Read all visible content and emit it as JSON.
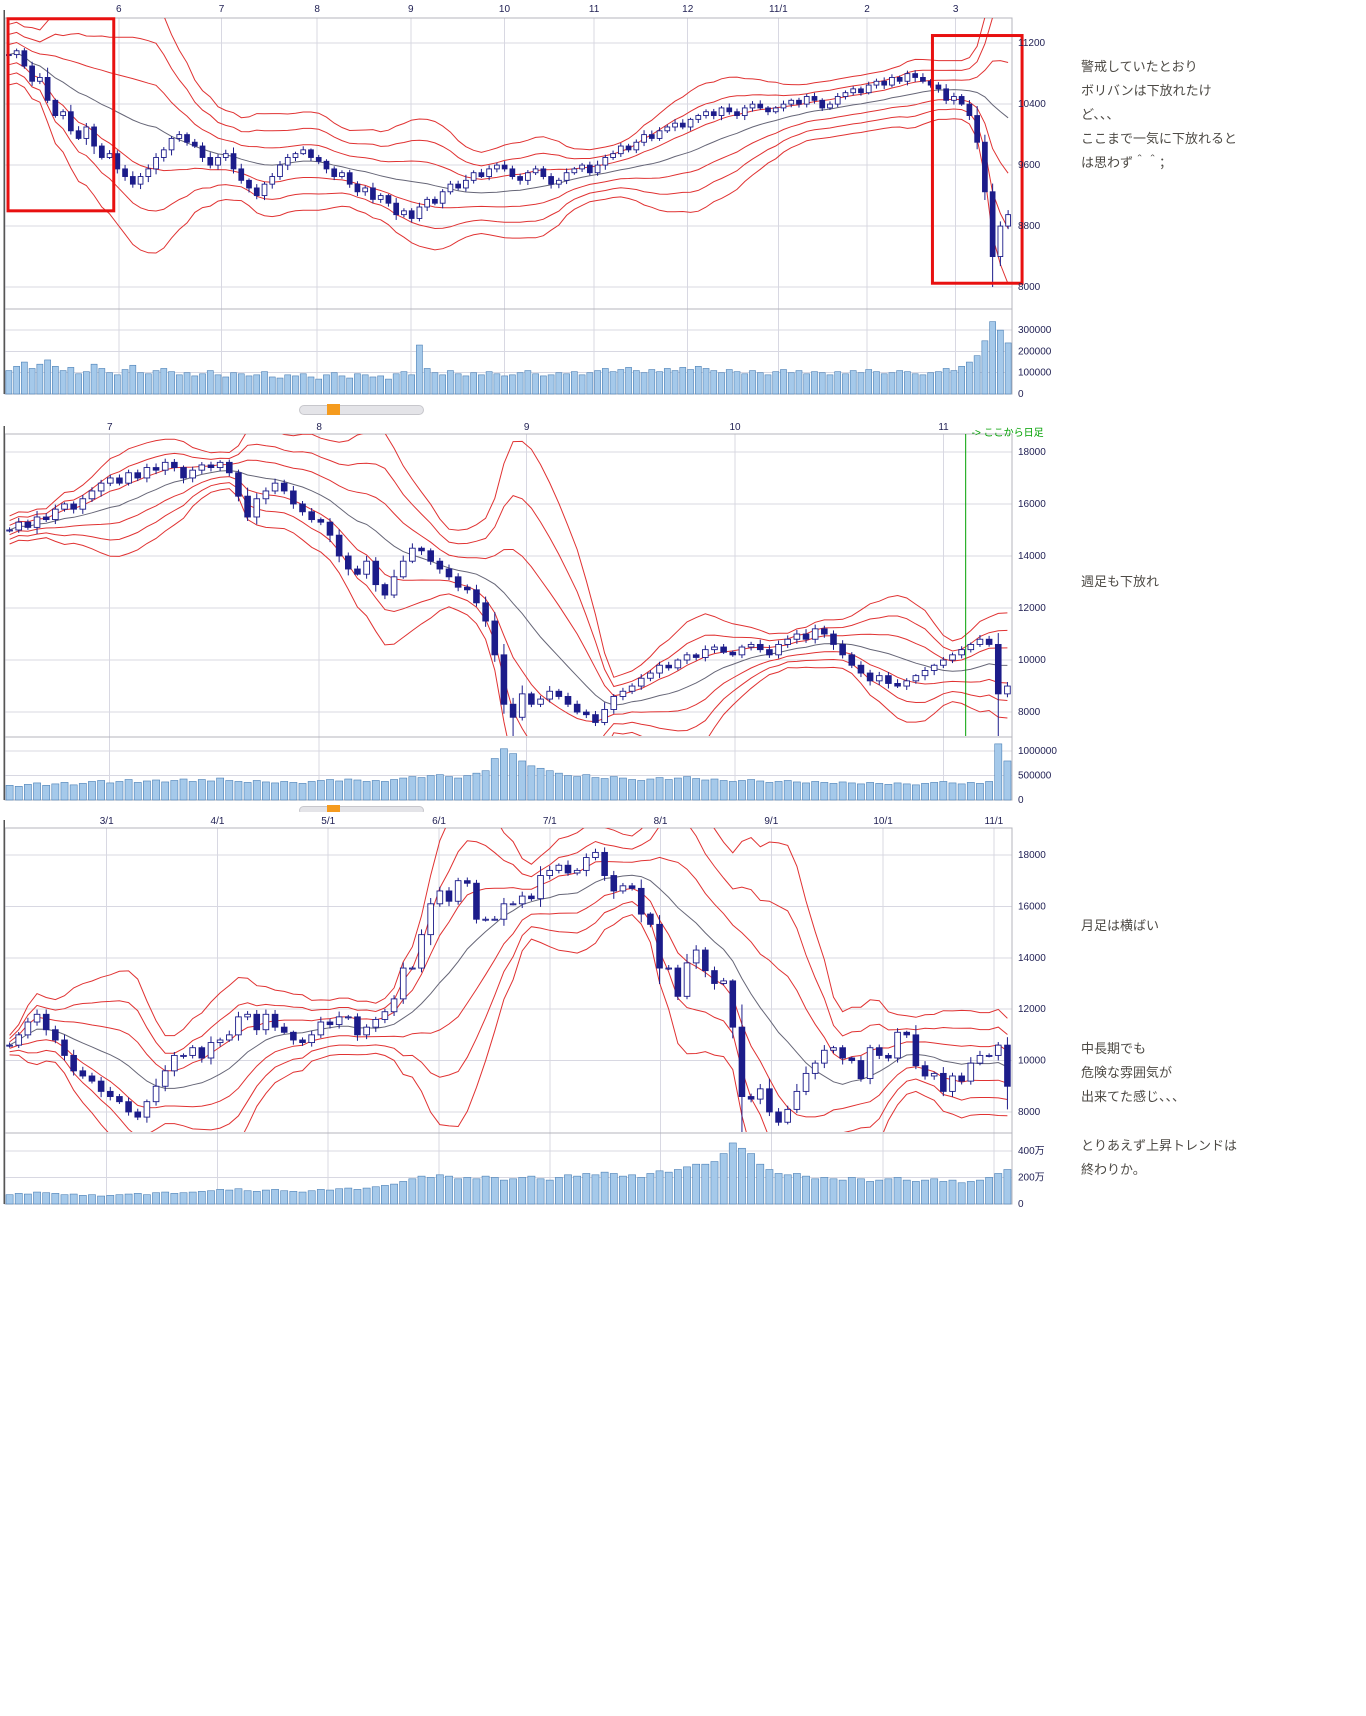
{
  "colors": {
    "band": "#e03232",
    "center_line": "#666677",
    "candle": "#1c1c8a",
    "candle_up_fill": "#ffffff",
    "volume_fill": "#a5c9ea",
    "volume_stroke": "#4a7fb5",
    "grid": "#d8d8e2",
    "axis_text": "#222255",
    "highlight_box": "#e81010",
    "annotation_text": "#4d4a45",
    "green": "#00a000",
    "artifact_orange": "#f59b1e"
  },
  "annotations": {
    "warning": {
      "lines": [
        "警戒していたとおり",
        "ボリバンは下放れたけ",
        "ど、、、",
        "ここまで一気に下放れると",
        "は思わず＾＾；"
      ]
    },
    "weekly": {
      "lines": [
        "週足も下放れ"
      ]
    },
    "monthly_flat": {
      "lines": [
        "月足は横ばい"
      ]
    },
    "midterm": {
      "lines": [
        "中長期でも",
        "危険な雰囲気が",
        "出来てた感じ、、、"
      ]
    },
    "trend_end": {
      "lines": [
        "とりあえず上昇トレンドは",
        "終わりか。"
      ]
    }
  },
  "chart_data": [
    {
      "name": "daily-chart",
      "type": "candlestick",
      "x_ticks": [
        {
          "f": 0.113,
          "label": "6"
        },
        {
          "f": 0.215,
          "label": "7"
        },
        {
          "f": 0.31,
          "label": "8"
        },
        {
          "f": 0.403,
          "label": "9"
        },
        {
          "f": 0.496,
          "label": "10"
        },
        {
          "f": 0.585,
          "label": "11"
        },
        {
          "f": 0.678,
          "label": "12"
        },
        {
          "f": 0.768,
          "label": "11/1"
        },
        {
          "f": 0.856,
          "label": "2"
        },
        {
          "f": 0.944,
          "label": "3"
        }
      ],
      "y_ticks": [
        {
          "v": 11200,
          "label": "11200"
        },
        {
          "v": 10400,
          "label": "10400"
        },
        {
          "v": 9600,
          "label": "9600"
        },
        {
          "v": 8800,
          "label": "8800"
        },
        {
          "v": 8000,
          "label": "8000"
        }
      ],
      "ylim": [
        7725,
        11530
      ],
      "vol_ticks": [
        {
          "v": 300000,
          "label": "300000"
        },
        {
          "v": 200000,
          "label": "200000"
        },
        {
          "v": 100000,
          "label": "100000"
        },
        {
          "v": 0,
          "label": "0"
        }
      ],
      "vlim": [
        0,
        390000
      ],
      "band_window": 20,
      "band_multipliers": [
        1,
        2,
        3
      ],
      "closes": [
        11050,
        11100,
        10900,
        10700,
        10750,
        10450,
        10250,
        10300,
        10050,
        9950,
        10100,
        9850,
        9700,
        9750,
        9550,
        9450,
        9350,
        9450,
        9550,
        9700,
        9800,
        9950,
        10000,
        9900,
        9850,
        9700,
        9600,
        9700,
        9750,
        9550,
        9400,
        9300,
        9200,
        9350,
        9450,
        9600,
        9700,
        9750,
        9800,
        9700,
        9650,
        9550,
        9450,
        9500,
        9350,
        9250,
        9300,
        9150,
        9200,
        9100,
        8950,
        9000,
        8900,
        9050,
        9150,
        9100,
        9250,
        9350,
        9300,
        9400,
        9500,
        9450,
        9550,
        9600,
        9550,
        9450,
        9400,
        9500,
        9550,
        9450,
        9350,
        9400,
        9500,
        9550,
        9600,
        9500,
        9600,
        9700,
        9750,
        9850,
        9800,
        9900,
        10000,
        9950,
        10050,
        10100,
        10150,
        10100,
        10200,
        10250,
        10300,
        10250,
        10350,
        10300,
        10250,
        10350,
        10400,
        10350,
        10300,
        10350,
        10400,
        10450,
        10400,
        10500,
        10450,
        10350,
        10400,
        10500,
        10550,
        10600,
        10550,
        10650,
        10700,
        10650,
        10750,
        10700,
        10800,
        10750,
        10700,
        10650,
        10600,
        10450,
        10500,
        10400,
        10250,
        9900,
        9250,
        8400,
        8800,
        8950
      ],
      "volumes": [
        110000,
        130000,
        150000,
        120000,
        140000,
        160000,
        130000,
        110000,
        125000,
        95000,
        105000,
        140000,
        120000,
        100000,
        90000,
        115000,
        135000,
        100000,
        95000,
        110000,
        120000,
        105000,
        90000,
        100000,
        85000,
        95000,
        110000,
        90000,
        80000,
        100000,
        95000,
        85000,
        90000,
        105000,
        80000,
        75000,
        90000,
        85000,
        95000,
        80000,
        70000,
        90000,
        100000,
        85000,
        75000,
        95000,
        90000,
        80000,
        85000,
        70000,
        95000,
        105000,
        90000,
        230000,
        120000,
        100000,
        90000,
        110000,
        95000,
        85000,
        100000,
        90000,
        105000,
        95000,
        85000,
        90000,
        100000,
        110000,
        95000,
        85000,
        90000,
        100000,
        95000,
        105000,
        90000,
        100000,
        110000,
        120000,
        105000,
        115000,
        125000,
        110000,
        100000,
        115000,
        105000,
        120000,
        110000,
        125000,
        115000,
        130000,
        120000,
        110000,
        100000,
        115000,
        105000,
        95000,
        110000,
        100000,
        90000,
        105000,
        115000,
        100000,
        110000,
        95000,
        105000,
        100000,
        90000,
        105000,
        95000,
        110000,
        100000,
        115000,
        105000,
        95000,
        100000,
        110000,
        105000,
        95000,
        90000,
        100000,
        105000,
        120000,
        110000,
        130000,
        150000,
        180000,
        250000,
        340000,
        300000,
        240000
      ],
      "low_overrides": {
        "127": 8000
      },
      "boxes": [
        {
          "f0": 0.003,
          "f1": 0.108,
          "v0": 11520,
          "v1": 9000
        },
        {
          "f0": 0.921,
          "f1": 1.01,
          "v0": 11300,
          "v1": 8050
        }
      ],
      "vline": null
    },
    {
      "name": "weekly-chart",
      "type": "candlestick",
      "x_ticks": [
        {
          "f": 0.104,
          "label": "7"
        },
        {
          "f": 0.312,
          "label": "8"
        },
        {
          "f": 0.518,
          "label": "9"
        },
        {
          "f": 0.725,
          "label": "10"
        },
        {
          "f": 0.932,
          "label": "11"
        }
      ],
      "y_ticks": [
        {
          "v": 18000,
          "label": "18000"
        },
        {
          "v": 16000,
          "label": "16000"
        },
        {
          "v": 14000,
          "label": "14000"
        },
        {
          "v": 12000,
          "label": "12000"
        },
        {
          "v": 10000,
          "label": "10000"
        },
        {
          "v": 8000,
          "label": "8000"
        }
      ],
      "ylim": [
        7080,
        18690
      ],
      "vol_ticks": [
        {
          "v": 1000000,
          "label": "1000000"
        },
        {
          "v": 500000,
          "label": "500000"
        },
        {
          "v": 0,
          "label": "0"
        }
      ],
      "vlim": [
        0,
        1250000
      ],
      "band_window": 13,
      "band_multipliers": [
        1,
        2,
        3
      ],
      "closes": [
        15000,
        15300,
        15100,
        15500,
        15400,
        15800,
        16000,
        15800,
        16200,
        16500,
        16800,
        17000,
        16800,
        17200,
        17000,
        17400,
        17300,
        17600,
        17400,
        17000,
        17300,
        17500,
        17400,
        17600,
        17200,
        16300,
        15500,
        16200,
        16500,
        16800,
        16500,
        16000,
        15700,
        15400,
        15300,
        14800,
        14000,
        13500,
        13300,
        13800,
        12900,
        12500,
        13200,
        13800,
        14300,
        14200,
        13800,
        13500,
        13200,
        12800,
        12700,
        12200,
        11500,
        10200,
        8300,
        7800,
        8700,
        8300,
        8500,
        8800,
        8600,
        8300,
        8000,
        7900,
        7600,
        8100,
        8600,
        8800,
        9000,
        9300,
        9500,
        9800,
        9700,
        10000,
        10200,
        10100,
        10400,
        10500,
        10300,
        10200,
        10500,
        10600,
        10400,
        10200,
        10600,
        10800,
        11000,
        10800,
        11200,
        11000,
        10600,
        10200,
        9800,
        9500,
        9200,
        9400,
        9100,
        9000,
        9200,
        9400,
        9600,
        9800,
        10000,
        10200,
        10400,
        10600,
        10800,
        10600,
        8700,
        9000
      ],
      "volumes": [
        300000,
        280000,
        320000,
        350000,
        300000,
        330000,
        360000,
        310000,
        340000,
        380000,
        400000,
        350000,
        380000,
        420000,
        360000,
        390000,
        410000,
        370000,
        400000,
        430000,
        380000,
        420000,
        390000,
        450000,
        400000,
        380000,
        360000,
        400000,
        370000,
        350000,
        380000,
        360000,
        340000,
        380000,
        400000,
        420000,
        390000,
        430000,
        410000,
        380000,
        400000,
        380000,
        420000,
        450000,
        480000,
        460000,
        500000,
        520000,
        480000,
        450000,
        500000,
        550000,
        600000,
        850000,
        1050000,
        950000,
        800000,
        700000,
        650000,
        600000,
        550000,
        500000,
        480000,
        520000,
        460000,
        440000,
        480000,
        450000,
        420000,
        400000,
        430000,
        460000,
        420000,
        450000,
        480000,
        440000,
        410000,
        430000,
        400000,
        380000,
        400000,
        420000,
        390000,
        360000,
        380000,
        400000,
        370000,
        350000,
        380000,
        360000,
        340000,
        370000,
        350000,
        330000,
        360000,
        340000,
        320000,
        350000,
        330000,
        310000,
        340000,
        360000,
        380000,
        350000,
        330000,
        360000,
        340000,
        380000,
        1150000,
        800000
      ],
      "low_overrides": {
        "55": 6900,
        "108": 6950
      },
      "boxes": [],
      "vline": {
        "f": 0.954,
        "label": "-> ここから日足"
      }
    },
    {
      "name": "monthly-chart",
      "type": "candlestick",
      "x_ticks": [
        {
          "f": 0.101,
          "label": "3/1"
        },
        {
          "f": 0.211,
          "label": "4/1"
        },
        {
          "f": 0.321,
          "label": "5/1"
        },
        {
          "f": 0.431,
          "label": "6/1"
        },
        {
          "f": 0.541,
          "label": "7/1"
        },
        {
          "f": 0.651,
          "label": "8/1"
        },
        {
          "f": 0.761,
          "label": "9/1"
        },
        {
          "f": 0.872,
          "label": "10/1"
        },
        {
          "f": 0.982,
          "label": "11/1"
        }
      ],
      "y_ticks": [
        {
          "v": 18000,
          "label": "18000"
        },
        {
          "v": 16000,
          "label": "16000"
        },
        {
          "v": 14000,
          "label": "14000"
        },
        {
          "v": 12000,
          "label": "12000"
        },
        {
          "v": 10000,
          "label": "10000"
        },
        {
          "v": 8000,
          "label": "8000"
        }
      ],
      "ylim": [
        7220,
        19050
      ],
      "vol_ticks": [
        {
          "v": 400,
          "label": "400万"
        },
        {
          "v": 200,
          "label": "200万"
        },
        {
          "v": 0,
          "label": "0"
        }
      ],
      "vlim": [
        0,
        520
      ],
      "volume_unit": "万",
      "band_window": 12,
      "band_multipliers": [
        1,
        2,
        3
      ],
      "closes": [
        10600,
        11000,
        11500,
        11800,
        11200,
        10800,
        10200,
        9600,
        9400,
        9200,
        8800,
        8600,
        8400,
        8000,
        7800,
        8400,
        9000,
        9600,
        10200,
        10200,
        10500,
        10100,
        10700,
        10800,
        11000,
        11700,
        11800,
        11200,
        11800,
        11300,
        11100,
        10800,
        10700,
        11000,
        11500,
        11400,
        11700,
        11700,
        11000,
        11300,
        11600,
        11900,
        12400,
        13600,
        13600,
        14900,
        16100,
        16600,
        16200,
        17000,
        16900,
        15500,
        15500,
        15500,
        16100,
        16100,
        16400,
        16300,
        17200,
        17400,
        17600,
        17300,
        17400,
        17900,
        18100,
        17200,
        16600,
        16800,
        16700,
        15700,
        15300,
        13600,
        13600,
        12500,
        13800,
        14300,
        13500,
        13000,
        13100,
        11300,
        8600,
        8500,
        8900,
        8000,
        7600,
        8100,
        8800,
        9500,
        9900,
        10400,
        10500,
        10100,
        10000,
        9300,
        10500,
        10200,
        10100,
        11100,
        11000,
        9800,
        9400,
        9500,
        8800,
        9400,
        9200,
        9900,
        10200,
        10200,
        10600,
        9000
      ],
      "volumes": [
        70,
        80,
        75,
        90,
        85,
        80,
        70,
        75,
        65,
        70,
        60,
        65,
        70,
        75,
        80,
        70,
        85,
        90,
        80,
        85,
        90,
        95,
        100,
        110,
        105,
        115,
        100,
        95,
        105,
        110,
        100,
        95,
        90,
        100,
        110,
        105,
        115,
        120,
        110,
        120,
        130,
        140,
        150,
        170,
        190,
        210,
        200,
        220,
        210,
        190,
        200,
        190,
        210,
        200,
        180,
        190,
        200,
        210,
        190,
        180,
        200,
        220,
        210,
        230,
        220,
        240,
        230,
        210,
        220,
        200,
        230,
        250,
        240,
        260,
        280,
        300,
        300,
        320,
        380,
        460,
        420,
        380,
        300,
        260,
        230,
        220,
        230,
        210,
        190,
        200,
        190,
        180,
        200,
        190,
        170,
        180,
        190,
        200,
        180,
        170,
        180,
        190,
        170,
        180,
        160,
        170,
        180,
        200,
        230,
        260
      ],
      "low_overrides": {
        "80": 7000,
        "109": 8100
      },
      "boxes": [],
      "vline": null
    }
  ]
}
